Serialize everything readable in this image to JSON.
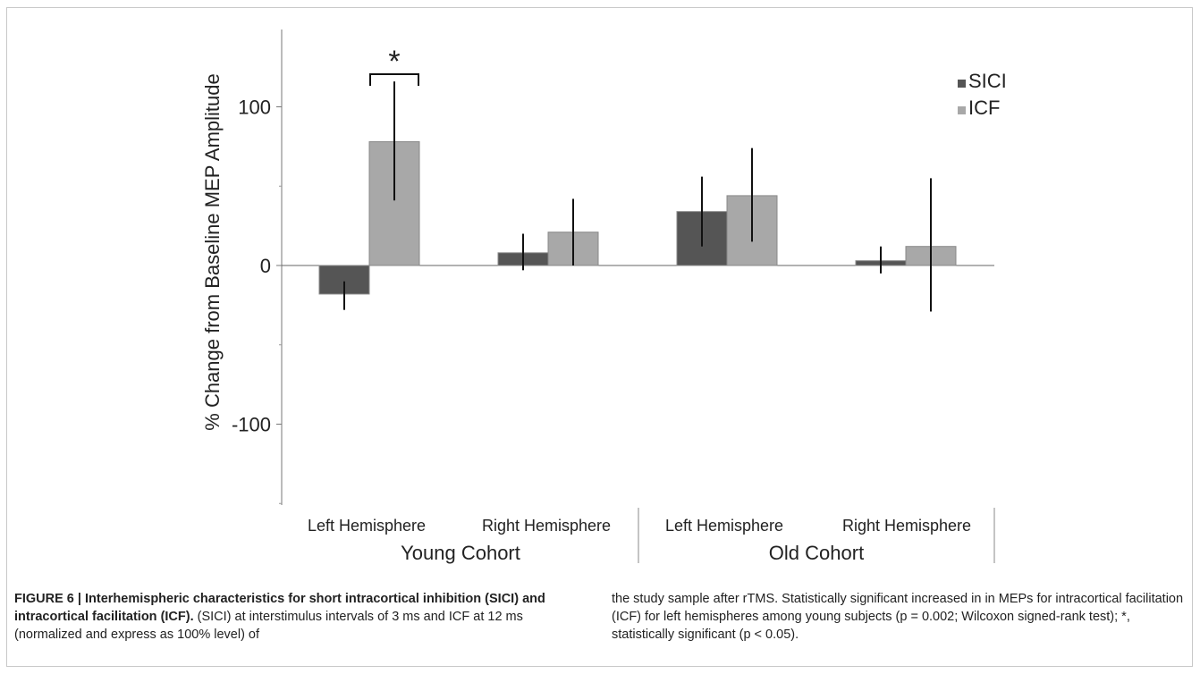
{
  "figure": {
    "caption_label": "FIGURE 6 | Interhemispheric characteristics for short intracortical inhibition (SICI) and intracortical facilitation (ICF).",
    "caption_text_left": " (SICI) at interstimulus intervals of 3 ms and ICF at 12 ms (normalized and express as 100% level) of",
    "caption_text_right": "the study sample after rTMS. Statistically significant increased in in MEPs for intracortical facilitation (ICF) for left hemispheres among young subjects (p = 0.002; Wilcoxon signed-rank test); *, statistically significant (p < 0.05)."
  },
  "chart_data": {
    "type": "bar",
    "title": "",
    "ylabel": "% Change from Baseline MEP Amplitude",
    "xlabel": "",
    "ylim": [
      -160,
      150
    ],
    "yticks": [
      100,
      0,
      -100
    ],
    "grid": false,
    "legend_position": "top-right",
    "categories": [
      "Left Hemisphere",
      "Right Hemisphere",
      "Left Hemisphere",
      "Right Hemisphere"
    ],
    "groups": [
      {
        "label": "Young Cohort",
        "categories": [
          0,
          1
        ]
      },
      {
        "label": "Old Cohort",
        "categories": [
          2,
          3
        ]
      }
    ],
    "series": [
      {
        "name": "SICI",
        "color": "#555555",
        "values": [
          -18,
          8,
          34,
          3
        ],
        "error_low": [
          -28,
          -3,
          12,
          -5
        ],
        "error_high": [
          -10,
          20,
          56,
          12
        ]
      },
      {
        "name": "ICF",
        "color": "#a8a8a8",
        "values": [
          78,
          21,
          44,
          12
        ],
        "error_low": [
          41,
          0,
          15,
          -29
        ],
        "error_high": [
          116,
          42,
          74,
          55
        ]
      }
    ],
    "annotations": [
      {
        "text": "*",
        "category": 0,
        "note": "significance bracket"
      }
    ]
  }
}
